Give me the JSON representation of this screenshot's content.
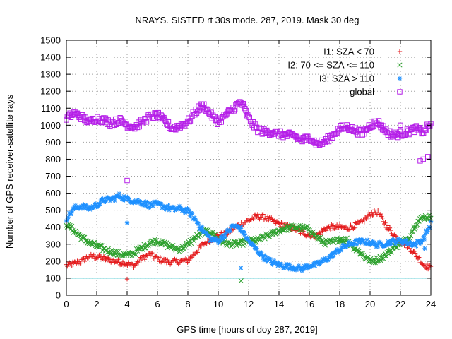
{
  "chart_data": {
    "type": "scatter",
    "title": "NRAYS. SISTED rt 30s mode. 287, 2019. Mask 30 deg",
    "xlabel": "GPS time [hours of doy 287, 2019]",
    "ylabel": "Number of GPS receiver-satellite rays",
    "xlim": [
      0,
      24
    ],
    "ylim": [
      0,
      1500
    ],
    "xticks": [
      0,
      2,
      4,
      6,
      8,
      10,
      12,
      14,
      16,
      18,
      20,
      22,
      24
    ],
    "yticks": [
      0,
      100,
      200,
      300,
      400,
      500,
      600,
      700,
      800,
      900,
      1000,
      1100,
      1200,
      1300,
      1400,
      1500
    ],
    "grid": true,
    "legend_position": "top-right",
    "reference_line": {
      "y": 100,
      "color": "#40c8d0"
    },
    "series": [
      {
        "name": "I1: SZA < 70",
        "marker": "+",
        "color": "#e41a1c",
        "x": [
          0,
          0.5,
          1,
          1.5,
          2,
          2.5,
          3,
          3.5,
          4,
          4.5,
          5,
          5.5,
          6,
          6.5,
          7,
          7.5,
          8,
          8.5,
          9,
          9.5,
          10,
          10.5,
          11,
          11.5,
          12,
          12.5,
          13,
          13.5,
          14,
          14.5,
          15,
          15.5,
          16,
          16.5,
          17,
          17.5,
          18,
          18.5,
          19,
          19.5,
          20,
          20.5,
          21,
          21.5,
          22,
          22.5,
          23,
          23.5,
          24
        ],
        "y": [
          175,
          185,
          200,
          230,
          225,
          215,
          205,
          195,
          185,
          175,
          220,
          240,
          215,
          200,
          195,
          200,
          205,
          250,
          300,
          330,
          350,
          360,
          390,
          420,
          440,
          465,
          460,
          440,
          420,
          405,
          390,
          370,
          355,
          350,
          390,
          400,
          400,
          395,
          410,
          430,
          480,
          490,
          420,
          360,
          320,
          290,
          240,
          180,
          160
        ],
        "outliers": [
          {
            "x": 4.0,
            "y": 95
          }
        ]
      },
      {
        "name": "I2: 70 <= SZA <= 110",
        "marker": "x",
        "color": "#2ca02c",
        "x": [
          0,
          0.5,
          1,
          1.5,
          2,
          2.5,
          3,
          3.5,
          4,
          4.5,
          5,
          5.5,
          6,
          6.5,
          7,
          7.5,
          8,
          8.5,
          9,
          9.5,
          10,
          10.5,
          11,
          11.5,
          12,
          12.5,
          13,
          13.5,
          14,
          14.5,
          15,
          15.5,
          16,
          16.5,
          17,
          17.5,
          18,
          18.5,
          19,
          19.5,
          20,
          20.5,
          21,
          21.5,
          22,
          22.5,
          23,
          23.5,
          24
        ],
        "y": [
          420,
          380,
          340,
          310,
          290,
          270,
          255,
          240,
          235,
          250,
          280,
          310,
          320,
          300,
          280,
          270,
          300,
          340,
          370,
          375,
          330,
          305,
          300,
          305,
          320,
          320,
          340,
          360,
          380,
          395,
          400,
          395,
          390,
          340,
          310,
          310,
          330,
          325,
          275,
          240,
          200,
          210,
          235,
          275,
          310,
          330,
          420,
          460,
          460
        ],
        "outliers": [
          {
            "x": 11.5,
            "y": 85
          }
        ]
      },
      {
        "name": "I3: SZA > 110",
        "marker": "*",
        "color": "#1e90ff",
        "x": [
          0,
          0.5,
          1,
          1.5,
          2,
          2.5,
          3,
          3.5,
          4,
          4.5,
          5,
          5.5,
          6,
          6.5,
          7,
          7.5,
          8,
          8.5,
          9,
          9.5,
          10,
          10.5,
          11,
          11.5,
          12,
          12.5,
          13,
          13.5,
          14,
          14.5,
          15,
          15.5,
          16,
          16.5,
          17,
          17.5,
          18,
          18.5,
          19,
          19.5,
          20,
          20.5,
          21,
          21.5,
          22,
          22.5,
          23,
          23.5,
          24
        ],
        "y": [
          450,
          510,
          525,
          510,
          530,
          560,
          565,
          585,
          565,
          555,
          545,
          530,
          535,
          520,
          505,
          510,
          495,
          445,
          380,
          330,
          320,
          360,
          410,
          390,
          320,
          270,
          225,
          195,
          180,
          170,
          165,
          155,
          175,
          180,
          205,
          235,
          270,
          295,
          310,
          315,
          310,
          295,
          305,
          315,
          320,
          310,
          300,
          330,
          420
        ],
        "outliers": [
          {
            "x": 4.0,
            "y": 425
          },
          {
            "x": 11.5,
            "y": 160
          },
          {
            "x": 23.6,
            "y": 275
          }
        ]
      },
      {
        "name": "global",
        "marker": "square",
        "color": "#b51ee8",
        "x": [
          0,
          0.5,
          1,
          1.5,
          2,
          2.5,
          3,
          3.5,
          4,
          4.5,
          5,
          5.5,
          6,
          6.5,
          7,
          7.5,
          8,
          8.5,
          9,
          9.5,
          10,
          10.5,
          11,
          11.5,
          12,
          12.5,
          13,
          13.5,
          14,
          14.5,
          15,
          15.5,
          16,
          16.5,
          17,
          17.5,
          18,
          18.5,
          19,
          19.5,
          20,
          20.5,
          21,
          21.5,
          22,
          22.5,
          23,
          23.5,
          24
        ],
        "y": [
          1040,
          1070,
          1050,
          1020,
          1040,
          1030,
          1010,
          1030,
          1000,
          990,
          1020,
          1050,
          1060,
          1020,
          980,
          1000,
          1020,
          1080,
          1120,
          1060,
          1020,
          1060,
          1100,
          1140,
          1040,
          980,
          960,
          960,
          950,
          940,
          940,
          910,
          930,
          890,
          900,
          940,
          980,
          990,
          970,
          950,
          1000,
          1020,
          970,
          940,
          950,
          960,
          980,
          960,
          1010
        ],
        "outliers": [
          {
            "x": 4.0,
            "y": 675
          },
          {
            "x": 22.0,
            "y": 1000
          },
          {
            "x": 23.3,
            "y": 790
          },
          {
            "x": 23.5,
            "y": 800
          },
          {
            "x": 23.8,
            "y": 815
          }
        ]
      }
    ]
  }
}
